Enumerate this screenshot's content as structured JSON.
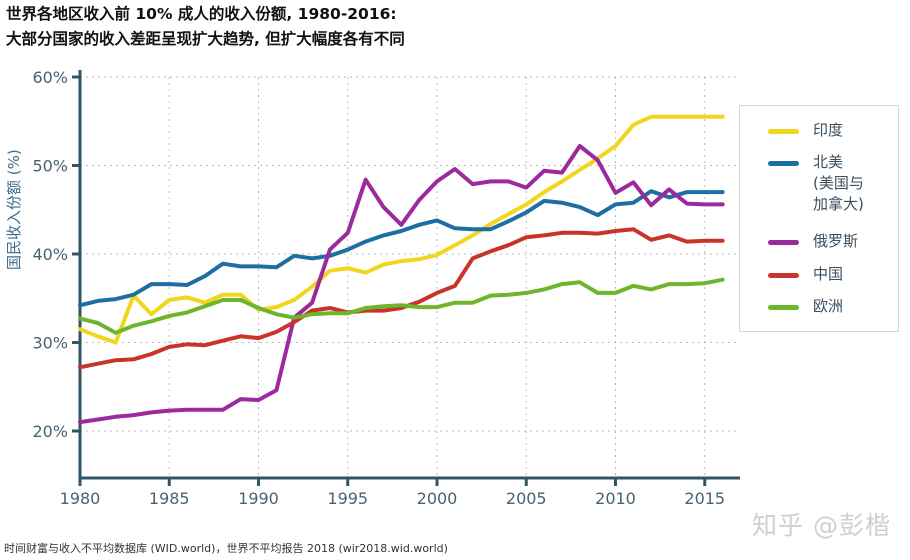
{
  "title_line1": "世界各地区收入前 10% 成人的收入份额, 1980-2016:",
  "title_line2": "大部分国家的收入差距呈现扩大趋势, 但扩大幅度各有不同",
  "source": "时间财富与收入不平均数据库 (WID.world)，世界不平均报告 2018 (wir2018.wid.world)",
  "watermark": "知乎 @彭楷",
  "chart_data": {
    "type": "line",
    "title": "世界各地区收入前 10% 成人的收入份额, 1980-2016",
    "subtitle": "大部分国家的收入差距呈现扩大趋势, 但扩大幅度各有不同",
    "xlabel": "",
    "ylabel": "国民收入份额 (%)",
    "xlim": [
      1980,
      2017
    ],
    "ylim": [
      17,
      60
    ],
    "xticks": [
      1980,
      1985,
      1990,
      1995,
      2000,
      2005,
      2010,
      2015
    ],
    "xtick_labels": [
      "1980",
      "1985",
      "1990",
      "1995",
      "2000",
      "2005",
      "2010",
      "2015"
    ],
    "yticks": [
      20,
      30,
      40,
      50,
      60
    ],
    "ytick_labels": [
      "20%",
      "30%",
      "40%",
      "50%",
      "60%"
    ],
    "grid": true,
    "legend_position": "right",
    "x": [
      1980,
      1981,
      1982,
      1983,
      1984,
      1985,
      1986,
      1987,
      1988,
      1989,
      1990,
      1991,
      1992,
      1993,
      1994,
      1995,
      1996,
      1997,
      1998,
      1999,
      2000,
      2001,
      2002,
      2003,
      2004,
      2005,
      2006,
      2007,
      2008,
      2009,
      2010,
      2011,
      2012,
      2013,
      2014,
      2015,
      2016
    ],
    "series": [
      {
        "name": "印度",
        "legend_label": "印度",
        "color": "#f2d51d",
        "values": [
          31.5,
          30.7,
          30.0,
          35.3,
          33.2,
          34.8,
          35.1,
          34.5,
          35.4,
          35.4,
          33.7,
          34.0,
          34.8,
          36.3,
          38.1,
          38.4,
          37.9,
          38.8,
          39.2,
          39.4,
          39.9,
          41.0,
          42.1,
          43.4,
          44.5,
          45.6,
          47.0,
          48.2,
          49.5,
          50.8,
          52.2,
          54.6,
          55.5,
          55.5,
          55.5,
          55.5,
          55.5
        ]
      },
      {
        "name": "北美",
        "legend_label": "北美\n(美国与\n加拿大)",
        "color": "#1d6fa3",
        "values": [
          34.2,
          34.7,
          34.9,
          35.4,
          36.6,
          36.6,
          36.5,
          37.5,
          38.9,
          38.6,
          38.6,
          38.5,
          39.8,
          39.5,
          39.8,
          40.5,
          41.4,
          42.1,
          42.6,
          43.3,
          43.8,
          42.9,
          42.8,
          42.8,
          43.7,
          44.7,
          46.0,
          45.8,
          45.3,
          44.4,
          45.6,
          45.8,
          47.1,
          46.4,
          47.0,
          47.0,
          47.0
        ]
      },
      {
        "name": "俄罗斯",
        "legend_label": "俄罗斯",
        "color": "#9b2a9c",
        "values": [
          21.0,
          21.3,
          21.6,
          21.8,
          22.1,
          22.3,
          22.4,
          22.4,
          22.4,
          23.6,
          23.5,
          24.6,
          32.8,
          34.5,
          40.5,
          42.4,
          48.4,
          45.3,
          43.3,
          46.1,
          48.2,
          49.6,
          47.9,
          48.2,
          48.2,
          47.5,
          49.4,
          49.2,
          52.2,
          50.6,
          46.9,
          48.1,
          45.5,
          47.3,
          45.7,
          45.6,
          45.6
        ]
      },
      {
        "name": "中国",
        "legend_label": "中国",
        "color": "#c9342a",
        "values": [
          27.2,
          27.6,
          28.0,
          28.1,
          28.7,
          29.5,
          29.8,
          29.7,
          30.2,
          30.7,
          30.5,
          31.2,
          32.3,
          33.6,
          33.9,
          33.4,
          33.6,
          33.6,
          33.9,
          34.6,
          35.6,
          36.4,
          39.5,
          40.3,
          41.0,
          41.9,
          42.1,
          42.4,
          42.4,
          42.3,
          42.6,
          42.8,
          41.6,
          42.1,
          41.4,
          41.5,
          41.5
        ]
      },
      {
        "name": "欧洲",
        "legend_label": "欧洲",
        "color": "#6db62c",
        "values": [
          32.7,
          32.2,
          31.1,
          31.9,
          32.4,
          33.0,
          33.4,
          34.1,
          34.8,
          34.8,
          33.9,
          33.2,
          32.8,
          33.2,
          33.3,
          33.3,
          33.9,
          34.1,
          34.2,
          34.0,
          34.0,
          34.5,
          34.5,
          35.3,
          35.4,
          35.6,
          36.0,
          36.6,
          36.8,
          35.6,
          35.6,
          36.4,
          36.0,
          36.6,
          36.6,
          36.7,
          37.1
        ]
      }
    ]
  },
  "colors": {
    "axis": "#2f5567",
    "tick_text": "#4a6270",
    "grid": "#bbbbbb"
  }
}
